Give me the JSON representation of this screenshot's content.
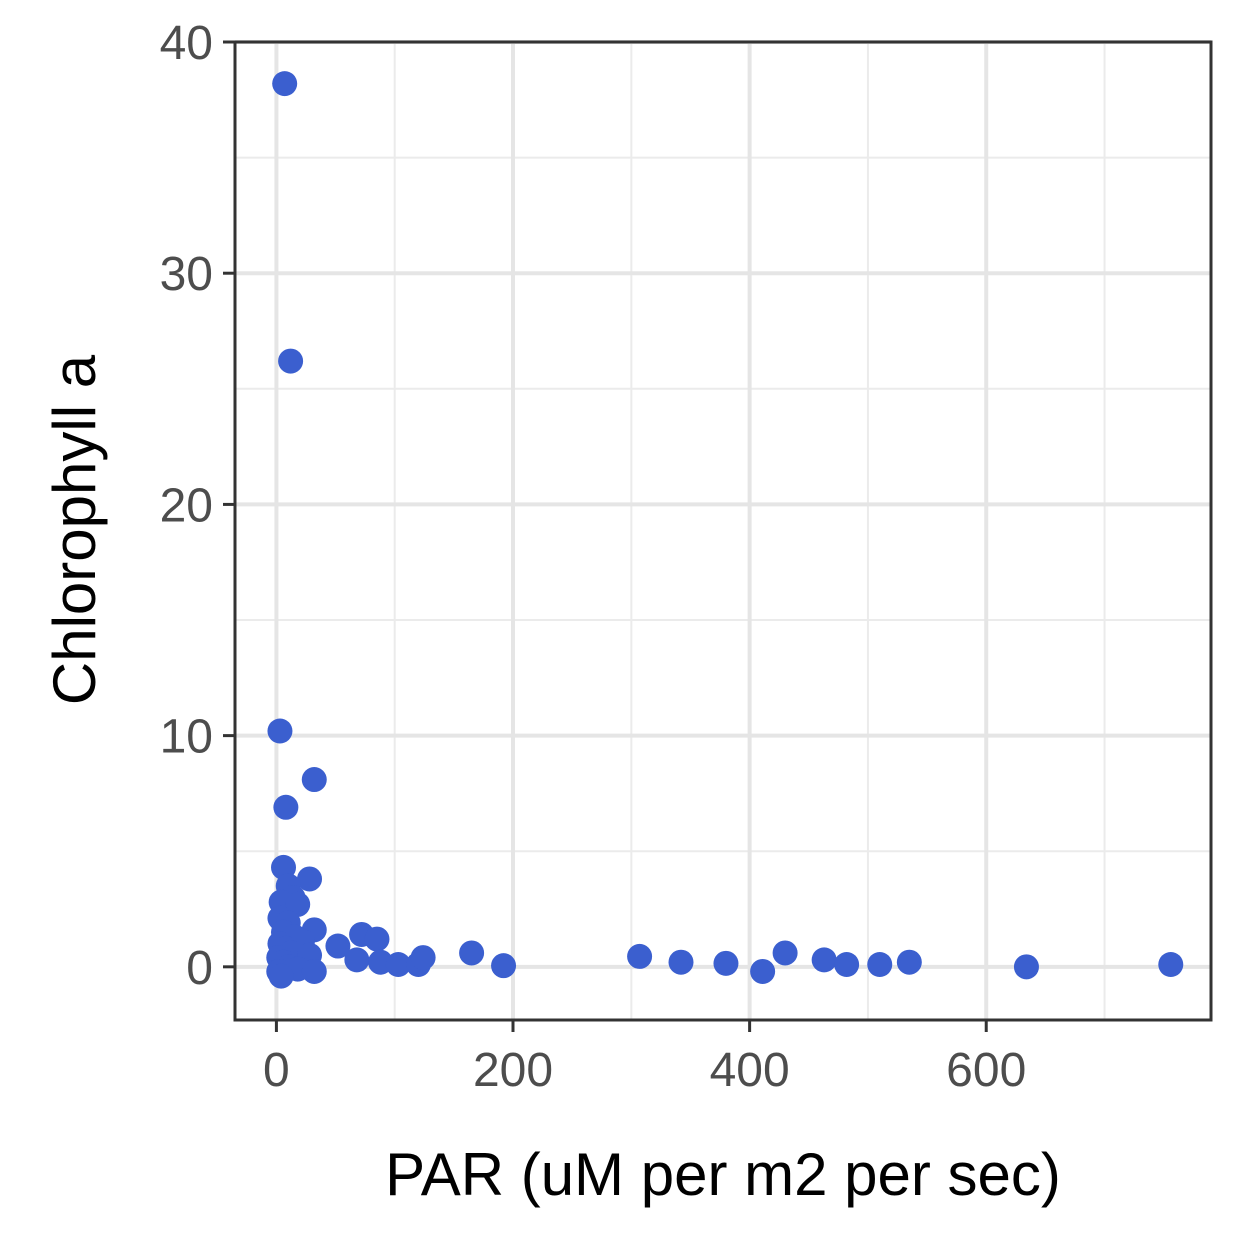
{
  "chart_data": {
    "type": "scatter",
    "title": "",
    "xlabel": "PAR (uM per m2 per sec)",
    "ylabel": "Chlorophyll a",
    "xlim": [
      -35,
      790
    ],
    "ylim": [
      -2.3,
      40
    ],
    "x_ticks": [
      0,
      200,
      400,
      600
    ],
    "y_ticks": [
      0,
      10,
      20,
      30,
      40
    ],
    "x_minor": [
      100,
      300,
      500,
      700
    ],
    "y_minor": [
      5,
      15,
      25,
      35
    ],
    "grid": true,
    "point_color": "#3b5fcf",
    "points": [
      {
        "x": 7,
        "y": 38.2
      },
      {
        "x": 12,
        "y": 26.2
      },
      {
        "x": 3,
        "y": 10.2
      },
      {
        "x": 32,
        "y": 8.1
      },
      {
        "x": 8,
        "y": 6.9
      },
      {
        "x": 6,
        "y": 4.3
      },
      {
        "x": 28,
        "y": 3.8
      },
      {
        "x": 10,
        "y": 3.5
      },
      {
        "x": 14,
        "y": 3.0
      },
      {
        "x": 4,
        "y": 2.8
      },
      {
        "x": 18,
        "y": 2.7
      },
      {
        "x": 3,
        "y": 2.1
      },
      {
        "x": 10,
        "y": 1.9
      },
      {
        "x": 32,
        "y": 1.6
      },
      {
        "x": 6,
        "y": 1.5
      },
      {
        "x": 15,
        "y": 1.3
      },
      {
        "x": 22,
        "y": 1.1
      },
      {
        "x": 3,
        "y": 1.0
      },
      {
        "x": 8,
        "y": 0.8
      },
      {
        "x": 12,
        "y": 0.6
      },
      {
        "x": 28,
        "y": 0.5
      },
      {
        "x": 2,
        "y": 0.4
      },
      {
        "x": 6,
        "y": 0.2
      },
      {
        "x": 10,
        "y": 0.0
      },
      {
        "x": 18,
        "y": -0.1
      },
      {
        "x": 2,
        "y": -0.2
      },
      {
        "x": 32,
        "y": -0.2
      },
      {
        "x": 4,
        "y": -0.4
      },
      {
        "x": 52,
        "y": 0.9
      },
      {
        "x": 68,
        "y": 0.3
      },
      {
        "x": 72,
        "y": 1.4
      },
      {
        "x": 85,
        "y": 1.2
      },
      {
        "x": 88,
        "y": 0.2
      },
      {
        "x": 103,
        "y": 0.1
      },
      {
        "x": 120,
        "y": 0.1
      },
      {
        "x": 124,
        "y": 0.4
      },
      {
        "x": 165,
        "y": 0.6
      },
      {
        "x": 192,
        "y": 0.05
      },
      {
        "x": 307,
        "y": 0.45
      },
      {
        "x": 342,
        "y": 0.2
      },
      {
        "x": 380,
        "y": 0.15
      },
      {
        "x": 411,
        "y": -0.2
      },
      {
        "x": 430,
        "y": 0.6
      },
      {
        "x": 463,
        "y": 0.3
      },
      {
        "x": 482,
        "y": 0.1
      },
      {
        "x": 510,
        "y": 0.1
      },
      {
        "x": 535,
        "y": 0.2
      },
      {
        "x": 634,
        "y": 0.0
      },
      {
        "x": 756,
        "y": 0.1
      }
    ]
  }
}
